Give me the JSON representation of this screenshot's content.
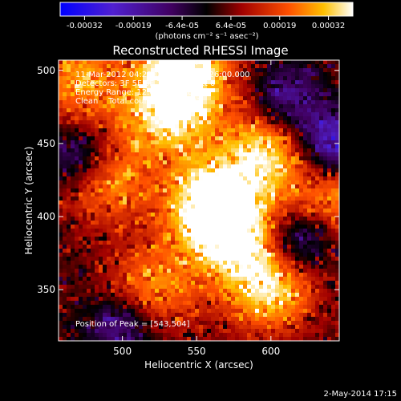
{
  "colorbar": {
    "tick_labels": [
      "-0.00032",
      "-0.00019",
      "-6.4e-05",
      "6.4e-05",
      "0.00019",
      "0.00032"
    ],
    "units": "(photons cm⁻² s⁻¹ asec⁻²)",
    "min": -0.00032,
    "max": 0.00032
  },
  "chart_data": {
    "type": "heatmap",
    "title": "Reconstructed RHESSI Image",
    "xlabel": "Heliocentric X (arcsec)",
    "ylabel": "Heliocentric Y (arcsec)",
    "xlim": [
      457,
      646
    ],
    "ylim": [
      315,
      507
    ],
    "x_ticks": [
      500,
      550,
      600
    ],
    "y_ticks": [
      350,
      400,
      450,
      500
    ],
    "grid": false,
    "colormap": "hot-blue diverging (blue negative, black zero, red-yellow-white positive)",
    "info_lines": [
      "11-Mar-2012 04:22:02.000 to 04:26:00.000",
      "Detectors: 3F 5F 6F 7F 8F 9F, Att 0",
      "Energy Range: 12.0 - 25.0 keV",
      "Clean    Total counts: 3.92E+03"
    ],
    "peak_label": "Position of Peak = [543,504]",
    "peak": [
      543,
      504
    ],
    "bright_sources": [
      {
        "x": 560,
        "y": 408,
        "intensity": 0.00032
      },
      {
        "x": 543,
        "y": 504,
        "intensity": 0.00032
      },
      {
        "x": 530,
        "y": 470,
        "intensity": 0.00025
      },
      {
        "x": 595,
        "y": 445,
        "intensity": 0.00025
      },
      {
        "x": 575,
        "y": 385,
        "intensity": 0.00022
      },
      {
        "x": 600,
        "y": 350,
        "intensity": 0.00025
      },
      {
        "x": 488,
        "y": 425,
        "intensity": 0.0002
      },
      {
        "x": 470,
        "y": 495,
        "intensity": 0.0002
      },
      {
        "x": 640,
        "y": 410,
        "intensity": 0.00019
      },
      {
        "x": 520,
        "y": 350,
        "intensity": 0.00019
      }
    ],
    "negative_sources": [
      {
        "x": 470,
        "y": 440,
        "intensity": -0.00019
      },
      {
        "x": 640,
        "y": 450,
        "intensity": -0.00026
      },
      {
        "x": 500,
        "y": 325,
        "intensity": -0.00019
      },
      {
        "x": 620,
        "y": 385,
        "intensity": -0.00022
      },
      {
        "x": 610,
        "y": 480,
        "intensity": -0.00019
      }
    ]
  },
  "footer": {
    "date": "2-May-2014 17:15"
  }
}
